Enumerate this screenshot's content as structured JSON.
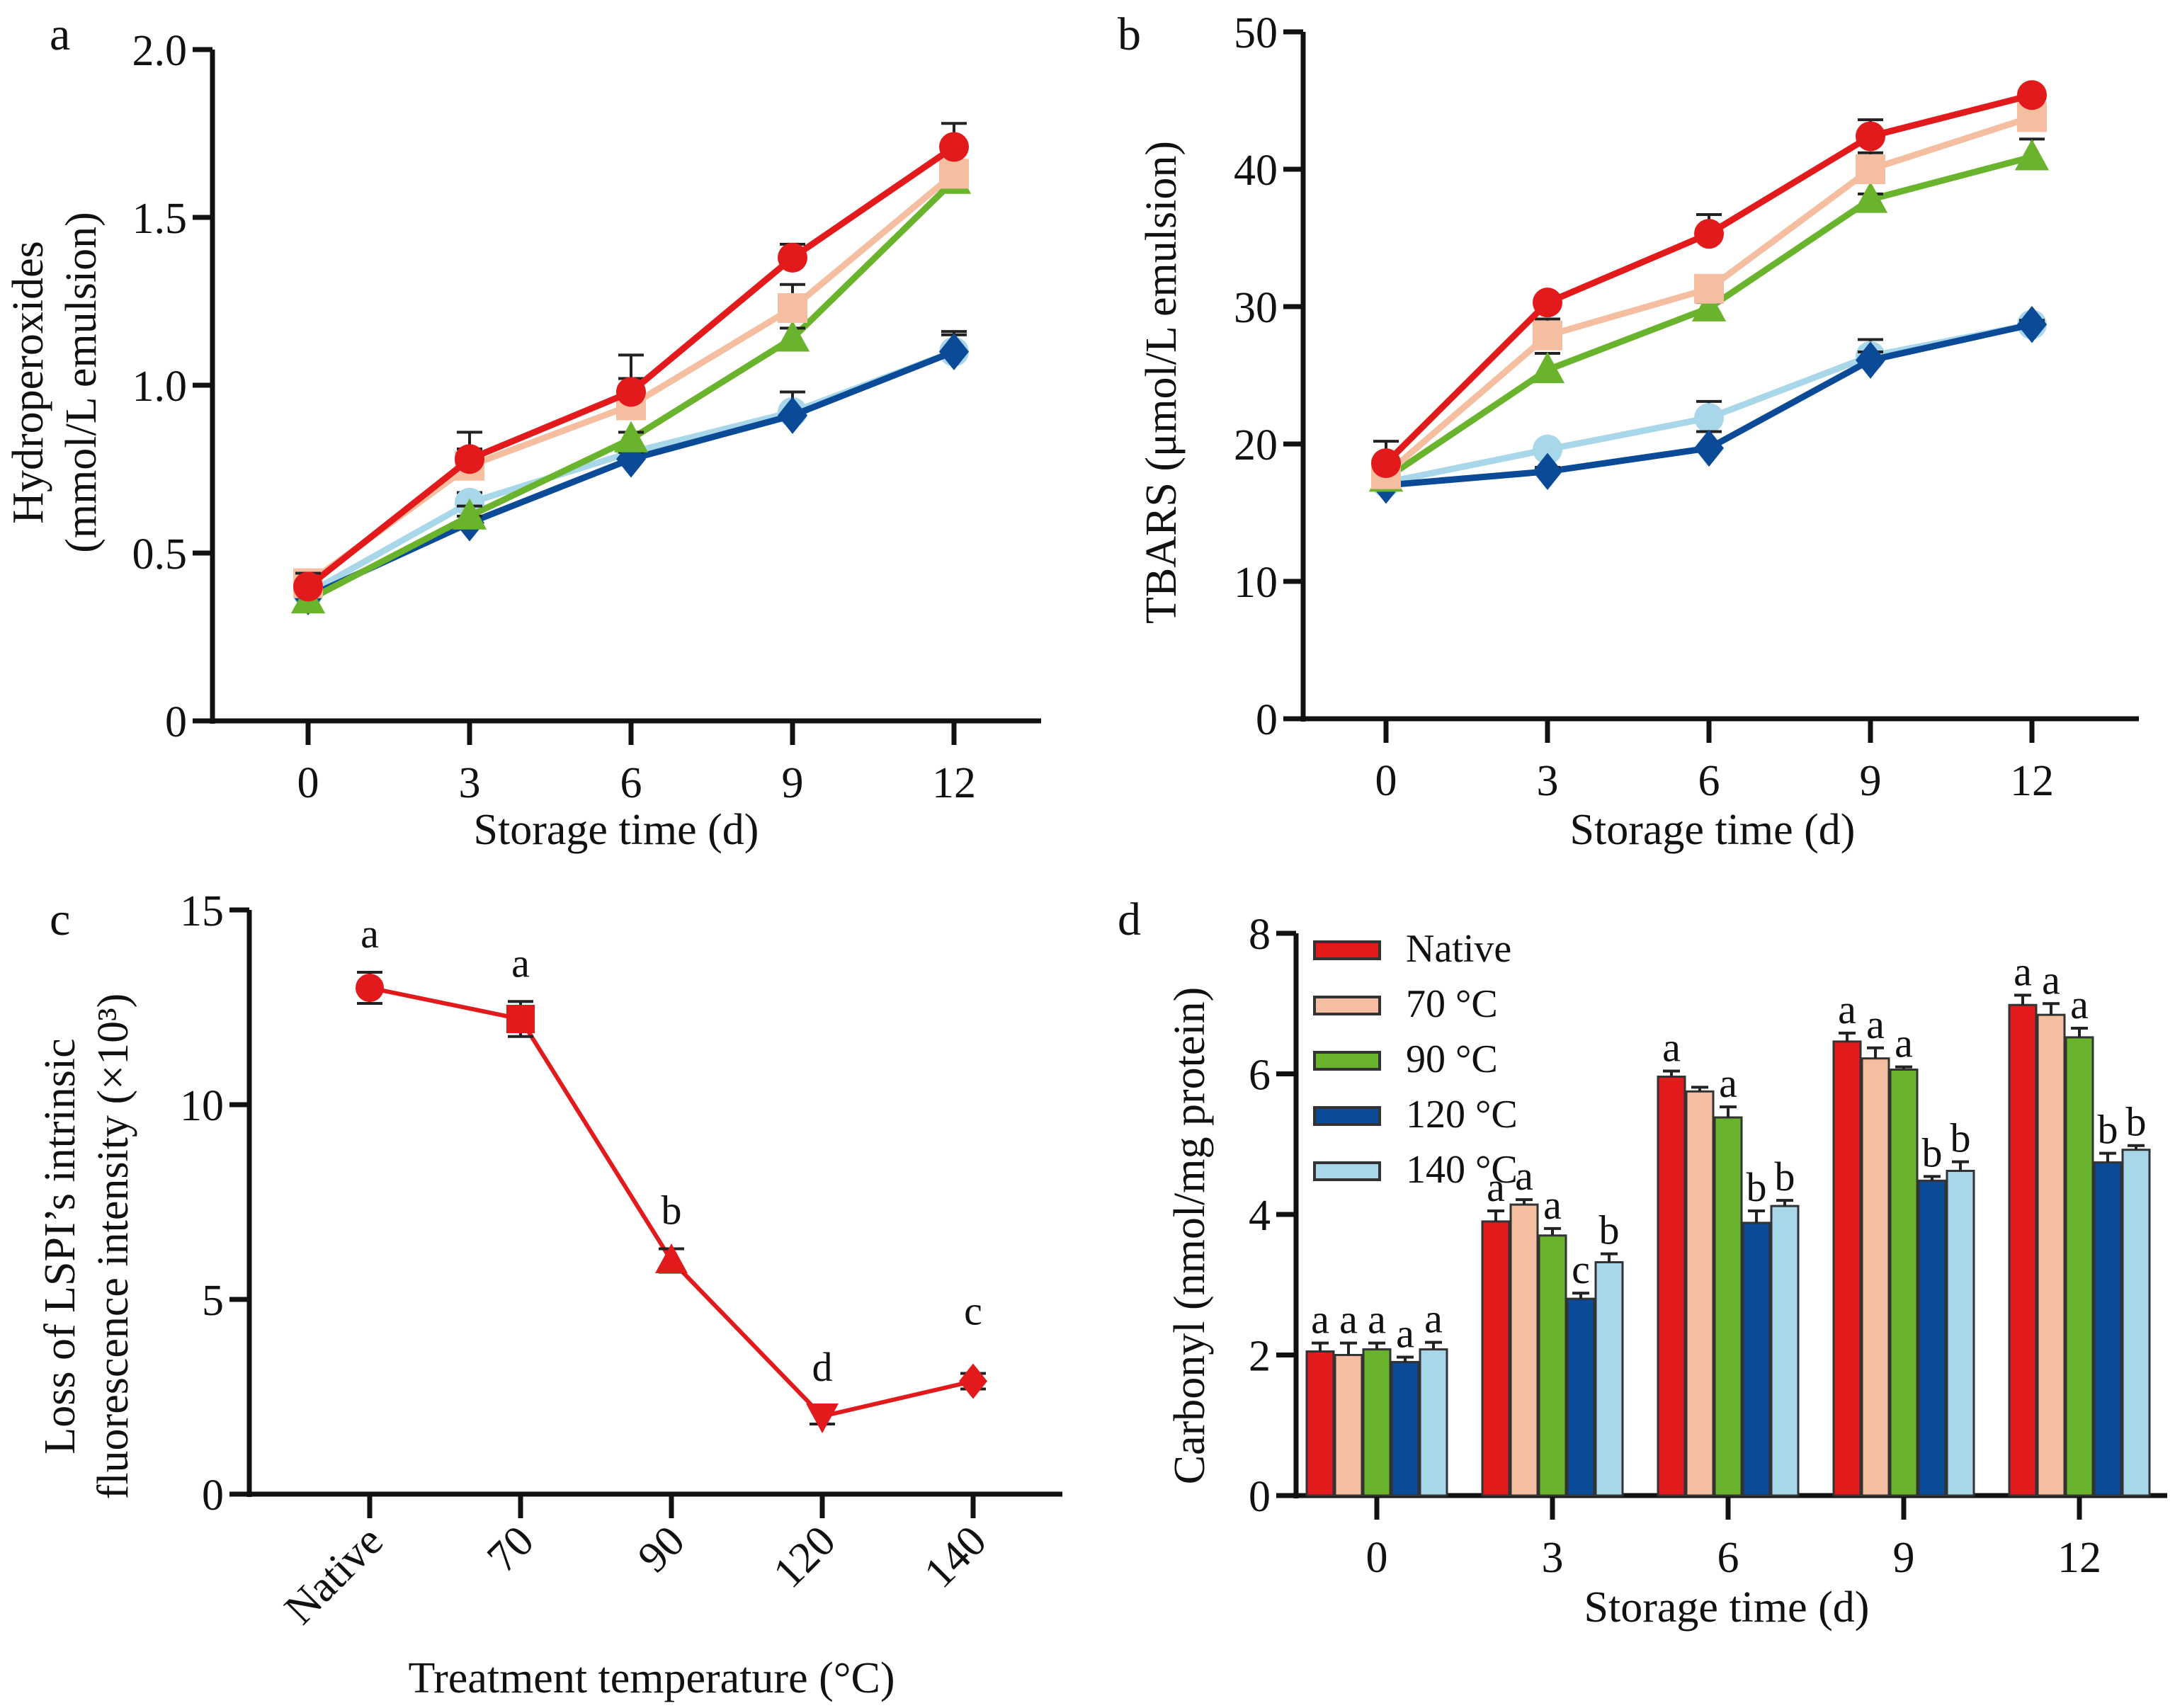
{
  "figure": {
    "panels": [
      "a",
      "b",
      "c",
      "d"
    ]
  },
  "colors": {
    "Native": "#e31a1c",
    "70 °C": "#f6bea0",
    "90 °C": "#6ab42d",
    "120 °C": "#0a4a97",
    "140 °C": "#a9d7ea"
  },
  "chart_data": [
    {
      "panel": "a",
      "type": "line",
      "title": "",
      "xlabel": "Storage time (d)",
      "ylabel": "Hydroperoxides (mmol/L emulsion)",
      "ylabel_lines": [
        "Hydroperoxides",
        "(mmol/L emulsion)"
      ],
      "x": [
        0,
        3,
        6,
        9,
        12
      ],
      "xticks": [
        "0",
        "3",
        "6",
        "9",
        "12"
      ],
      "ylim": [
        0,
        2.0
      ],
      "yticks": [
        0,
        0.5,
        1.0,
        1.5,
        2.0
      ],
      "ytick_labels": [
        "0",
        "0.5",
        "1.0",
        "1.5",
        "2.0"
      ],
      "grid": false,
      "series": [
        {
          "name": "140 °C",
          "marker": "circle",
          "values": [
            0.38,
            0.65,
            0.8,
            0.92,
            1.1
          ],
          "errors": [
            0.02,
            0.03,
            0.02,
            0.06,
            0.05
          ]
        },
        {
          "name": "120 °C",
          "marker": "diamond",
          "values": [
            0.37,
            0.59,
            0.78,
            0.91,
            1.1
          ],
          "errors": [
            0.02,
            0.02,
            0.02,
            0.07,
            0.06
          ]
        },
        {
          "name": "90 °C",
          "marker": "triangle",
          "values": [
            0.36,
            0.61,
            0.84,
            1.14,
            1.61
          ],
          "errors": [
            0.02,
            0.03,
            0.02,
            0.03,
            0.02
          ]
        },
        {
          "name": "70 °C",
          "marker": "square",
          "values": [
            0.41,
            0.76,
            0.94,
            1.23,
            1.63
          ],
          "errors": [
            0.02,
            0.05,
            0.08,
            0.07,
            0.04
          ]
        },
        {
          "name": "Native",
          "marker": "circle",
          "values": [
            0.4,
            0.78,
            0.98,
            1.38,
            1.71
          ],
          "errors": [
            0.04,
            0.08,
            0.11,
            0.04,
            0.07
          ]
        }
      ]
    },
    {
      "panel": "b",
      "type": "line",
      "title": "",
      "xlabel": "Storage time (d)",
      "ylabel": "TBARS (μmol/L emulsion)",
      "x": [
        0,
        3,
        6,
        9,
        12
      ],
      "xticks": [
        "0",
        "3",
        "6",
        "9",
        "12"
      ],
      "ylim": [
        0,
        50
      ],
      "yticks": [
        0,
        10,
        20,
        30,
        40,
        50
      ],
      "ytick_labels": [
        "0",
        "10",
        "20",
        "30",
        "40",
        "50"
      ],
      "grid": false,
      "series": [
        {
          "name": "140 °C",
          "marker": "circle",
          "values": [
            17.2,
            19.6,
            21.9,
            26.4,
            28.7
          ],
          "errors": [
            0.3,
            0.3,
            1.2,
            1.2,
            0.3
          ]
        },
        {
          "name": "120 °C",
          "marker": "diamond",
          "values": [
            17.0,
            18.0,
            19.7,
            26.1,
            28.7
          ],
          "errors": [
            0.3,
            0.3,
            1.2,
            0.6,
            0.3
          ]
        },
        {
          "name": "90 °C",
          "marker": "triangle",
          "values": [
            17.5,
            25.4,
            29.9,
            37.8,
            40.9
          ],
          "errors": [
            0.3,
            1.2,
            0.4,
            0.4,
            1.3
          ]
        },
        {
          "name": "70 °C",
          "marker": "square",
          "values": [
            17.8,
            27.9,
            31.3,
            40.0,
            43.8
          ],
          "errors": [
            0.3,
            1.2,
            0.3,
            1.2,
            0.3
          ]
        },
        {
          "name": "Native",
          "marker": "circle",
          "values": [
            18.6,
            30.3,
            35.3,
            42.4,
            45.4
          ],
          "errors": [
            1.6,
            0.3,
            1.4,
            1.2,
            0.3
          ]
        }
      ]
    },
    {
      "panel": "c",
      "type": "line",
      "title": "",
      "xlabel": "Treatment temperature (°C)",
      "ylabel": "Loss of LSPI’s intrinsic fluorescence intensity (×10³)",
      "ylabel_lines": [
        "Loss of LSPI’s intrinsic",
        "fluorescence intensity (×10³)"
      ],
      "categories": [
        "Native",
        "70",
        "90",
        "120",
        "140"
      ],
      "ylim": [
        0,
        15
      ],
      "yticks": [
        0,
        5,
        10,
        15
      ],
      "ytick_labels": [
        "0",
        "5",
        "10",
        "15"
      ],
      "grid": false,
      "series": [
        {
          "name": "LSPI",
          "markers": [
            "circle",
            "square",
            "triangle",
            "triangle-down",
            "diamond"
          ],
          "values": [
            13.0,
            12.2,
            6.0,
            2.0,
            2.9
          ],
          "errors": [
            0.4,
            0.45,
            0.3,
            0.2,
            0.2
          ],
          "labels": [
            "a",
            "a",
            "b",
            "d",
            "c"
          ]
        }
      ]
    },
    {
      "panel": "d",
      "type": "bar",
      "title": "",
      "xlabel": "Storage time (d)",
      "ylabel": "Carbonyl (nmol/mg protein)",
      "categories": [
        "0",
        "3",
        "6",
        "9",
        "12"
      ],
      "ylim": [
        0,
        8
      ],
      "yticks": [
        0,
        2,
        4,
        6,
        8
      ],
      "ytick_labels": [
        "0",
        "2",
        "4",
        "6",
        "8"
      ],
      "grid": false,
      "legend": "top-left",
      "series": [
        {
          "name": "Native",
          "values": [
            2.05,
            3.9,
            5.96,
            6.46,
            6.98
          ],
          "errors": [
            0.12,
            0.15,
            0.08,
            0.12,
            0.14
          ],
          "labels": [
            "a",
            "a",
            "a",
            "a",
            "a"
          ]
        },
        {
          "name": "70 °C",
          "values": [
            2.0,
            4.14,
            5.75,
            6.22,
            6.84
          ],
          "errors": [
            0.17,
            0.07,
            0.06,
            0.15,
            0.16
          ],
          "labels": [
            "a",
            "a",
            "",
            "a",
            "a"
          ]
        },
        {
          "name": "90 °C",
          "values": [
            2.08,
            3.7,
            5.38,
            6.06,
            6.52
          ],
          "errors": [
            0.09,
            0.1,
            0.15,
            0.04,
            0.13
          ],
          "labels": [
            "a",
            "a",
            "a",
            "a",
            "a"
          ]
        },
        {
          "name": "120 °C",
          "values": [
            1.9,
            2.8,
            3.88,
            4.48,
            4.74
          ],
          "errors": [
            0.07,
            0.08,
            0.17,
            0.06,
            0.13
          ],
          "labels": [
            "a",
            "c",
            "b",
            "b",
            "b"
          ]
        },
        {
          "name": "140 °C",
          "values": [
            2.08,
            3.32,
            4.12,
            4.62,
            4.92
          ],
          "errors": [
            0.1,
            0.12,
            0.08,
            0.13,
            0.06
          ],
          "labels": [
            "a",
            "b",
            "b",
            "b",
            "b"
          ]
        }
      ]
    }
  ]
}
